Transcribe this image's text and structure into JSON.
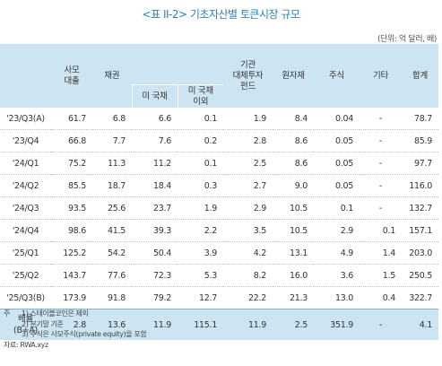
{
  "title": "<표 II-2> 기초자산별 토큰시장 규모",
  "unit": "(단위: 억 달러, 배)",
  "headers": {
    "period": "",
    "loan": "사모\n대출",
    "bond": "채권",
    "treasury_group": "",
    "us_treasury": "미 국채",
    "non_us_treasury": "미 국채\n이외",
    "institutional_fund": "기관\n대체투자\n펀드",
    "commodity": "원자재",
    "equity": "주식",
    "other": "기타",
    "total": "합계"
  },
  "rows": [
    {
      "period": "'23/Q3(A)",
      "vals": [
        "61.7",
        "6.8",
        "6.6",
        "0.1",
        "1.9",
        "8.4",
        "0.04",
        "-",
        "78.7"
      ]
    },
    {
      "period": "'23/Q4",
      "vals": [
        "66.8",
        "7.7",
        "7.6",
        "0.2",
        "2.8",
        "8.6",
        "0.05",
        "-",
        "85.9"
      ]
    },
    {
      "period": "'24/Q1",
      "vals": [
        "75.2",
        "11.3",
        "11.2",
        "0.1",
        "2.5",
        "8.6",
        "0.05",
        "-",
        "97.7"
      ]
    },
    {
      "period": "'24/Q2",
      "vals": [
        "85.5",
        "18.7",
        "18.4",
        "0.3",
        "2.7",
        "9.0",
        "0.05",
        "-",
        "116.0"
      ]
    },
    {
      "period": "'24/Q3",
      "vals": [
        "93.5",
        "25.6",
        "23.7",
        "1.9",
        "2.9",
        "10.5",
        "0.1",
        "-",
        "132.7"
      ]
    },
    {
      "period": "'24/Q4",
      "vals": [
        "98.6",
        "41.5",
        "39.3",
        "2.2",
        "3.5",
        "10.5",
        "2.9",
        "0.1",
        "157.1"
      ]
    },
    {
      "period": "'25/Q1",
      "vals": [
        "125.2",
        "54.2",
        "50.4",
        "3.9",
        "4.2",
        "13.1",
        "4.9",
        "1.4",
        "203.0"
      ]
    },
    {
      "period": "'25/Q2",
      "vals": [
        "143.7",
        "77.6",
        "72.3",
        "5.3",
        "8.2",
        "16.0",
        "3.6",
        "1.5",
        "250.5"
      ]
    },
    {
      "period": "'25/Q3(B)",
      "vals": [
        "173.9",
        "91.8",
        "79.2",
        "12.7",
        "22.2",
        "21.3",
        "13.0",
        "0.4",
        "322.7"
      ]
    }
  ],
  "ratio_row": {
    "period": "배율\n(B÷A)",
    "vals": [
      "2.8",
      "13.6",
      "11.9",
      "115.1",
      "11.9",
      "2.5",
      "351.9",
      "-",
      "4.1"
    ]
  },
  "notes": {
    "lead": "주",
    "items": [
      "1) 스테이블코인은 제외",
      "2) 분기말 기준",
      "3) 주식은 사모주식(private equity)을 포함"
    ],
    "source": "자료: RWA.xyz"
  }
}
